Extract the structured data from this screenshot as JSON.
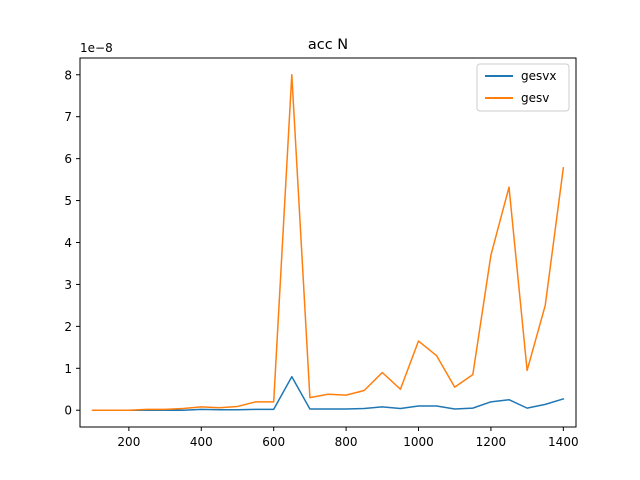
{
  "chart_data": {
    "type": "line",
    "title": "acc N",
    "xlabel": "",
    "ylabel": "",
    "y_scale_label": "1e−8",
    "xlim": [
      65,
      1435
    ],
    "ylim": [
      -0.4,
      8.4
    ],
    "x_ticks": [
      200,
      400,
      600,
      800,
      1000,
      1200,
      1400
    ],
    "y_ticks": [
      0,
      1,
      2,
      3,
      4,
      5,
      6,
      7,
      8
    ],
    "legend_position": "top-right",
    "grid": false,
    "x": [
      100,
      150,
      200,
      250,
      300,
      350,
      400,
      450,
      500,
      550,
      600,
      650,
      700,
      750,
      800,
      850,
      900,
      950,
      1000,
      1050,
      1100,
      1150,
      1200,
      1250,
      1300,
      1350,
      1400
    ],
    "series": [
      {
        "name": "gesvx",
        "color": "#1f77b4",
        "values": [
          0.0,
          0.0,
          0.0,
          0.0,
          0.0,
          0.0,
          0.02,
          0.01,
          0.01,
          0.02,
          0.02,
          0.8,
          0.03,
          0.03,
          0.03,
          0.04,
          0.08,
          0.04,
          0.1,
          0.1,
          0.03,
          0.05,
          0.2,
          0.25,
          0.05,
          0.14,
          0.27
        ]
      },
      {
        "name": "gesv",
        "color": "#ff7f0e",
        "values": [
          0.0,
          0.0,
          0.0,
          0.02,
          0.02,
          0.04,
          0.08,
          0.06,
          0.09,
          0.2,
          0.2,
          8.0,
          0.3,
          0.38,
          0.36,
          0.47,
          0.9,
          0.5,
          1.65,
          1.3,
          0.55,
          0.85,
          3.7,
          5.32,
          0.95,
          2.5,
          5.78
        ]
      }
    ]
  }
}
